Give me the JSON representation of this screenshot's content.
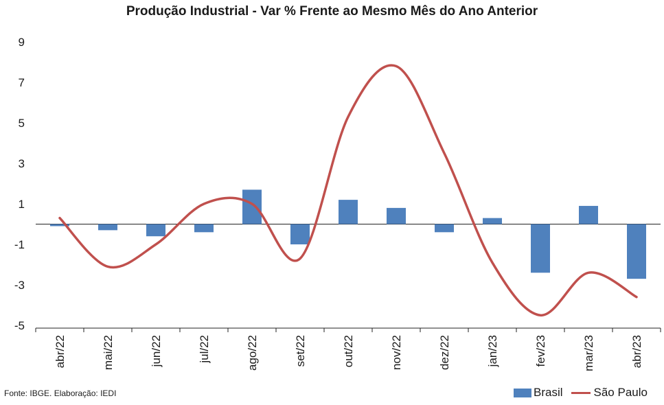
{
  "chart_data": {
    "type": "bar+line",
    "title": "Produção Industrial - Var % Frente ao Mesmo Mês do Ano Anterior",
    "categories": [
      "abr/22",
      "mai/22",
      "jun/22",
      "jul/22",
      "ago/22",
      "set/22",
      "out/22",
      "nov/22",
      "dez/22",
      "jan/23",
      "fev/23",
      "mar/23",
      "abr/23"
    ],
    "series": [
      {
        "name": "Brasil",
        "kind": "bar",
        "color": "#4f81bd",
        "values": [
          -0.1,
          -0.3,
          -0.6,
          -0.4,
          1.7,
          -1.0,
          1.2,
          0.8,
          -0.4,
          0.3,
          -2.4,
          0.9,
          -2.7
        ]
      },
      {
        "name": "São Paulo",
        "kind": "line",
        "color": "#c0504d",
        "values": [
          0.3,
          -2.1,
          -1.0,
          1.0,
          1.0,
          -1.7,
          5.3,
          7.8,
          3.5,
          -1.9,
          -4.5,
          -2.4,
          -3.6
        ]
      }
    ],
    "y_ticks": [
      "9",
      "7",
      "5",
      "3",
      "1",
      "-1",
      "-3",
      "-5"
    ],
    "ylim": [
      -5,
      9
    ],
    "grid": false,
    "legend_position": "bottom-right"
  },
  "source_note": "Fonte: IBGE. Elaboração: IEDI"
}
